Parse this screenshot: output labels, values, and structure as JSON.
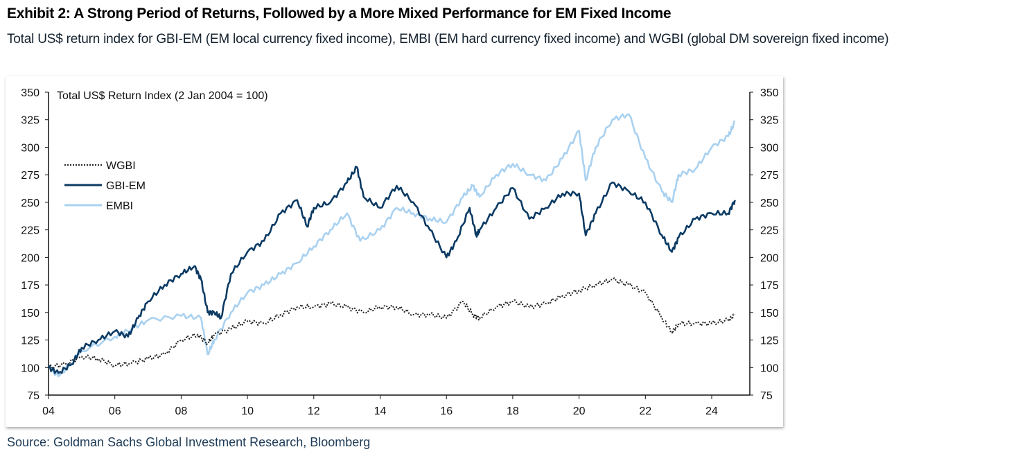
{
  "title": "Exhibit 2: A Strong Period of Returns, Followed by a More Mixed Performance for EM Fixed Income",
  "subtitle": "Total US$ return index for GBI-EM (EM local currency fixed income), EMBI (EM hard currency fixed income) and WGBI (global DM sovereign fixed income)",
  "source": "Source: Goldman Sachs Global Investment Research, Bloomberg",
  "chart_data": {
    "type": "line",
    "title": "Total US$ Return Index (2 Jan 2004 = 100)",
    "xlabel": "",
    "ylabel": "",
    "xlim": [
      2004,
      2025.2
    ],
    "ylim": [
      75,
      350
    ],
    "yticks": [
      75,
      100,
      125,
      150,
      175,
      200,
      225,
      250,
      275,
      300,
      325,
      350
    ],
    "xticks": [
      2004,
      2006,
      2008,
      2010,
      2012,
      2014,
      2016,
      2018,
      2020,
      2022,
      2024
    ],
    "xtick_labels": [
      "04",
      "06",
      "08",
      "10",
      "12",
      "14",
      "16",
      "18",
      "20",
      "22",
      "24"
    ],
    "legend_position": "upper-left",
    "grid": false,
    "series": [
      {
        "name": "WGBI",
        "color": "#222222",
        "style": "dotted",
        "x": [
          2004,
          2004.5,
          2005,
          2005.5,
          2006,
          2006.5,
          2007,
          2007.5,
          2008,
          2008.5,
          2008.8,
          2009,
          2009.5,
          2010,
          2010.5,
          2011,
          2011.5,
          2012,
          2012.5,
          2013,
          2013.5,
          2014,
          2014.5,
          2015,
          2015.5,
          2016,
          2016.5,
          2016.8,
          2017,
          2017.5,
          2018,
          2018.5,
          2019,
          2019.5,
          2020,
          2020.5,
          2021,
          2021.5,
          2022,
          2022.5,
          2022.8,
          2023,
          2023.5,
          2024,
          2024.5,
          2024.7
        ],
        "values": [
          100,
          103,
          110,
          108,
          102,
          104,
          108,
          112,
          125,
          130,
          122,
          130,
          135,
          142,
          140,
          148,
          155,
          155,
          158,
          155,
          150,
          155,
          155,
          148,
          148,
          145,
          160,
          148,
          145,
          155,
          160,
          155,
          158,
          165,
          170,
          175,
          180,
          175,
          168,
          145,
          132,
          140,
          140,
          140,
          143,
          148
        ]
      },
      {
        "name": "GBI-EM",
        "color": "#0b3a63",
        "style": "solid",
        "x": [
          2004,
          2004.3,
          2004.7,
          2005,
          2005.5,
          2006,
          2006.4,
          2006.7,
          2007,
          2007.5,
          2008,
          2008.4,
          2008.6,
          2008.8,
          2009,
          2009.2,
          2009.5,
          2010,
          2010.5,
          2011,
          2011.5,
          2011.8,
          2012,
          2012.5,
          2013,
          2013.3,
          2013.5,
          2014,
          2014.5,
          2015,
          2015.5,
          2016,
          2016.3,
          2016.7,
          2016.9,
          2017,
          2017.5,
          2018,
          2018.5,
          2019,
          2019.5,
          2020,
          2020.2,
          2020.5,
          2021,
          2021.5,
          2022,
          2022.5,
          2022.8,
          2023,
          2023.5,
          2024,
          2024.5,
          2024.7
        ],
        "values": [
          100,
          95,
          103,
          118,
          125,
          133,
          128,
          145,
          160,
          175,
          185,
          192,
          180,
          150,
          150,
          145,
          185,
          205,
          215,
          240,
          252,
          228,
          245,
          250,
          268,
          282,
          255,
          245,
          265,
          250,
          225,
          200,
          215,
          245,
          220,
          225,
          245,
          263,
          235,
          245,
          258,
          258,
          220,
          240,
          268,
          260,
          250,
          220,
          205,
          218,
          235,
          240,
          240,
          252
        ]
      },
      {
        "name": "EMBI",
        "color": "#a9d1f0",
        "style": "solid",
        "x": [
          2004,
          2004.3,
          2005,
          2006,
          2006.5,
          2007,
          2008,
          2008.6,
          2008.8,
          2009,
          2009.5,
          2010,
          2010.5,
          2011,
          2011.5,
          2012,
          2012.5,
          2013,
          2013.4,
          2014,
          2014.5,
          2015,
          2015.5,
          2016,
          2016.5,
          2016.8,
          2017,
          2017.5,
          2018,
          2018.5,
          2019,
          2019.5,
          2020,
          2020.2,
          2020.5,
          2021,
          2021.5,
          2022,
          2022.5,
          2022.8,
          2023,
          2023.5,
          2024,
          2024.5,
          2024.7
        ],
        "values": [
          100,
          92,
          115,
          128,
          135,
          143,
          147,
          145,
          112,
          125,
          150,
          168,
          175,
          185,
          195,
          210,
          225,
          240,
          215,
          225,
          245,
          240,
          235,
          232,
          255,
          265,
          255,
          275,
          285,
          275,
          270,
          290,
          315,
          270,
          300,
          325,
          330,
          290,
          260,
          250,
          275,
          280,
          300,
          310,
          323
        ]
      }
    ]
  }
}
